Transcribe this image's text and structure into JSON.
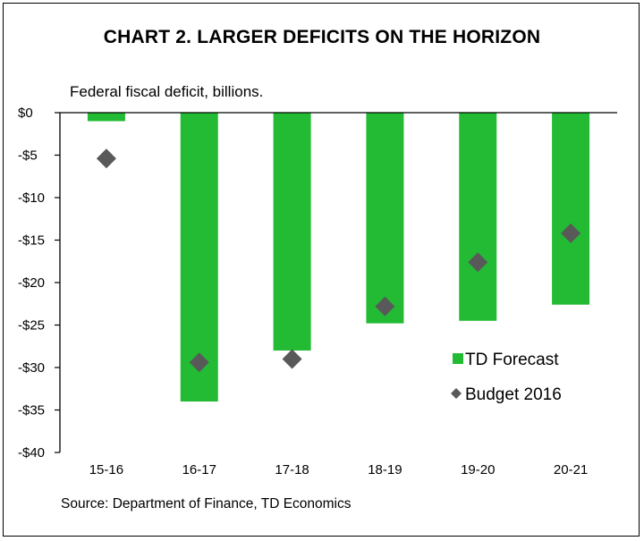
{
  "chart_data": {
    "type": "bar",
    "title": "CHART 2. LARGER DEFICITS ON THE HORIZON",
    "subtitle": "Federal fiscal deficit, billions.",
    "source": "Source: Department of Finance, TD Economics",
    "categories": [
      "15-16",
      "16-17",
      "17-18",
      "18-19",
      "19-20",
      "20-21"
    ],
    "ylim": [
      -40,
      0
    ],
    "yticks": [
      0,
      -5,
      -10,
      -15,
      -20,
      -25,
      -30,
      -35,
      -40
    ],
    "ytick_labels": [
      "$0",
      "-$5",
      "-$10",
      "-$15",
      "-$20",
      "-$25",
      "-$30",
      "-$35",
      "-$40"
    ],
    "series": [
      {
        "name": "TD Forecast",
        "type": "bar",
        "color": "#22bb33",
        "values": [
          -1.0,
          -34.0,
          -28.0,
          -24.8,
          -24.5,
          -22.6
        ]
      },
      {
        "name": "Budget 2016",
        "type": "scatter",
        "marker": "diamond",
        "color": "#595959",
        "values": [
          -5.4,
          -29.4,
          -29.0,
          -22.8,
          -17.6,
          -14.2
        ]
      }
    ],
    "legend": "inside-bottom-right",
    "grid": false
  }
}
